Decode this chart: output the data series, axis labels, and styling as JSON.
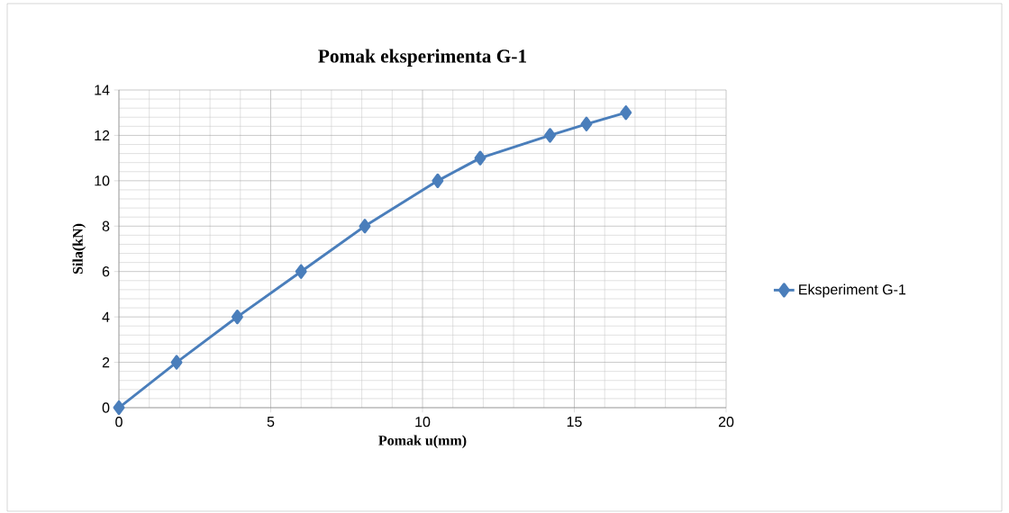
{
  "chart_data": {
    "type": "line",
    "title": "Pomak eksperimenta G-1",
    "xlabel": "Pomak u(mm)",
    "ylabel": "Sila(kN)",
    "x": [
      0,
      1.9,
      3.9,
      6.0,
      8.1,
      10.5,
      11.9,
      14.2,
      15.4,
      16.7
    ],
    "series": [
      {
        "name": "Eksperiment G-1",
        "color": "#4a7ebb",
        "values": [
          0,
          2,
          4,
          6,
          8,
          10,
          11,
          12,
          12.5,
          13
        ]
      }
    ],
    "xlim": [
      0,
      20
    ],
    "xticks": [
      0,
      5,
      10,
      15,
      20
    ],
    "ylim": [
      0,
      14
    ],
    "yticks": [
      0,
      2,
      4,
      6,
      8,
      10,
      12,
      14
    ],
    "grid": true,
    "legend": "right",
    "marker": "diamond",
    "line_style": "solid"
  }
}
